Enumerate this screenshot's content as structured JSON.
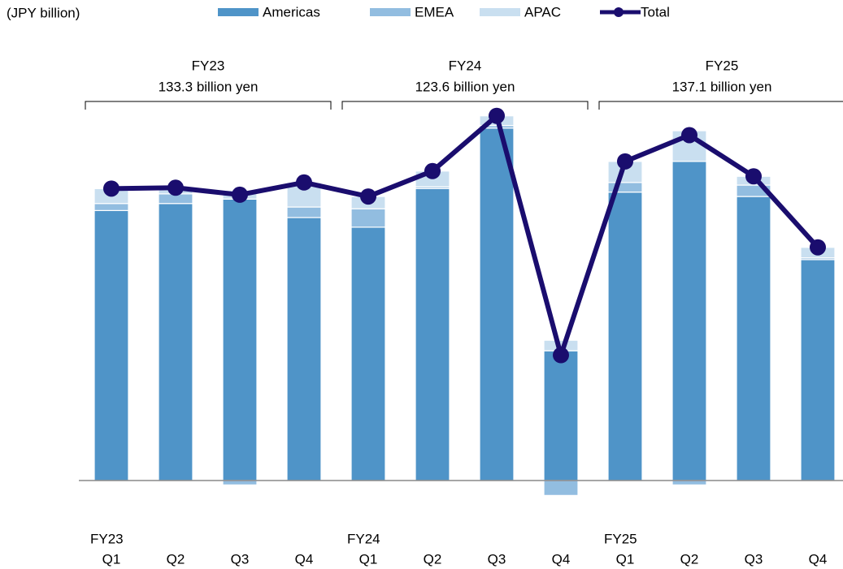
{
  "chart_data": {
    "type": "stacked-bar-line",
    "subtitle": "(JPY billion)",
    "categories": [
      "Q1",
      "Q2",
      "Q3",
      "Q4",
      "Q1",
      "Q2",
      "Q3",
      "Q4",
      "Q1",
      "Q2",
      "Q3",
      "Q4"
    ],
    "groups": [
      {
        "label": "FY23",
        "summary": "133.3 billion yen",
        "size": 4
      },
      {
        "label": "FY24",
        "summary": "123.6 billion yen",
        "size": 4
      },
      {
        "label": "FY25",
        "summary": "137.1 billion yen",
        "size": 4
      }
    ],
    "series": [
      {
        "name": "Americas",
        "color": "#4f94c8",
        "values": [
          30.8,
          31.6,
          32.1,
          30.0,
          28.9,
          33.3,
          40.2,
          14.8,
          32.9,
          36.4,
          32.4,
          25.2
        ]
      },
      {
        "name": "EMEA",
        "color": "#92bde0",
        "values": [
          0.8,
          1.1,
          -0.5,
          1.2,
          2.1,
          0.2,
          0.3,
          -1.7,
          1.1,
          -0.5,
          1.3,
          0.2
        ]
      },
      {
        "name": "APAC",
        "color": "#c9dff0",
        "values": [
          1.7,
          0.7,
          1.0,
          2.8,
          1.4,
          1.8,
          1.1,
          1.2,
          2.4,
          3.5,
          1.0,
          1.2
        ]
      },
      {
        "name": "Total",
        "type": "line",
        "color": "#1a0d6e",
        "values": [
          33.3,
          33.4,
          32.6,
          34.0,
          32.4,
          35.3,
          41.6,
          14.3,
          36.4,
          39.4,
          34.7,
          26.6
        ]
      }
    ],
    "ylim": [
      -5,
      45
    ]
  }
}
